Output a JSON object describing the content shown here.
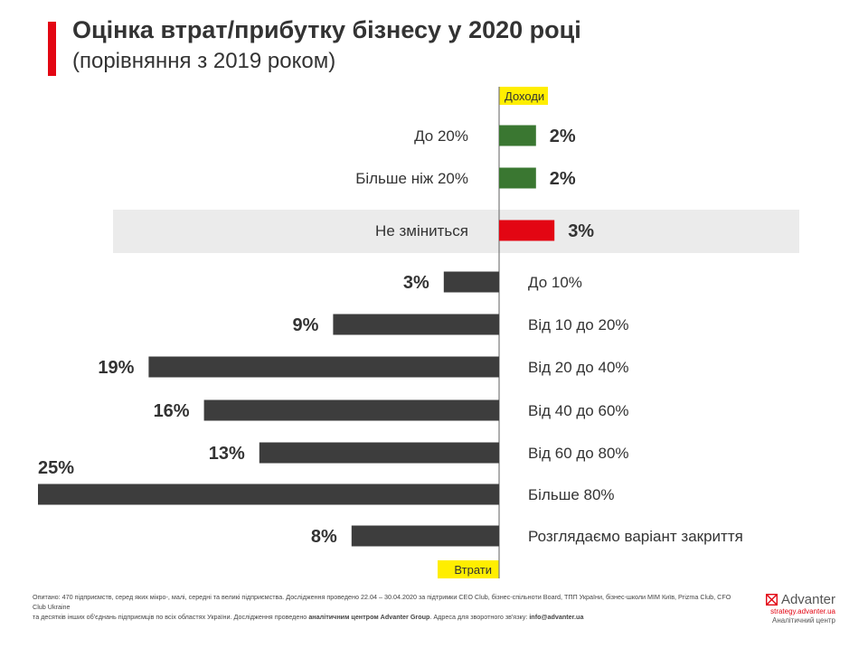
{
  "header": {
    "title": "Оцінка втрат/прибутку бізнесу у 2020 році",
    "subtitle": "(порівняння з 2019 роком)"
  },
  "chart_data": {
    "type": "bar",
    "orientation": "horizontal-diverging",
    "axis_labels": {
      "top": "Доходи",
      "bottom": "Втрати"
    },
    "groups": [
      {
        "name": "Доходи",
        "direction": "right",
        "color": "#3a7731",
        "categories": [
          "До 20%",
          "Більше ніж 20%"
        ],
        "values": [
          2,
          2
        ],
        "labels": [
          "2%",
          "2%"
        ]
      },
      {
        "name": "Не зміниться",
        "direction": "right",
        "color": "#e30613",
        "highlight": true,
        "categories": [
          "Не зміниться"
        ],
        "values": [
          3
        ],
        "labels": [
          "3%"
        ]
      },
      {
        "name": "Втрати",
        "direction": "left",
        "color": "#3d3d3d",
        "categories": [
          "До 10%",
          "Від 10 до 20%",
          "Від 20 до 40%",
          "Від 40 до 60%",
          "Від 60 до 80%",
          "Більше 80%",
          "Розглядаємо варіант закриття"
        ],
        "values": [
          3,
          9,
          19,
          16,
          13,
          25,
          8
        ],
        "labels": [
          "3%",
          "9%",
          "19%",
          "16%",
          "13%",
          "25%",
          "8%"
        ]
      }
    ],
    "xlim": [
      -25,
      25
    ],
    "highlight_color": "#ebebeb",
    "axis_tag_color": "#ffee00"
  },
  "footer": {
    "line1": "Опитано: 470 підприємств, серед яких мікро-, малі, середні та великі підприємства. Дослідження проведено 22.04 – 30.04.2020 за підтримки CEO Club, бізнес-спільноти Board, ТПП України, бізнес-школи МІМ Київ, Prizma Club, CFO Club Ukraine",
    "line2_prefix": "та десятків інших об'єднань підприємців по всіх областях України. Дослідження проведено",
    "line2_bold": "аналітичним центром Advanter Group",
    "line2_mid": ". Адреса для зворотного зв'язку:",
    "line2_email": "info@advanter.ua"
  },
  "brand": {
    "name": "Advanter",
    "site": "strategy.advanter.ua",
    "tagline": "Аналітичний центр",
    "icon": "advanter-logo-icon",
    "color": "#e30613"
  }
}
